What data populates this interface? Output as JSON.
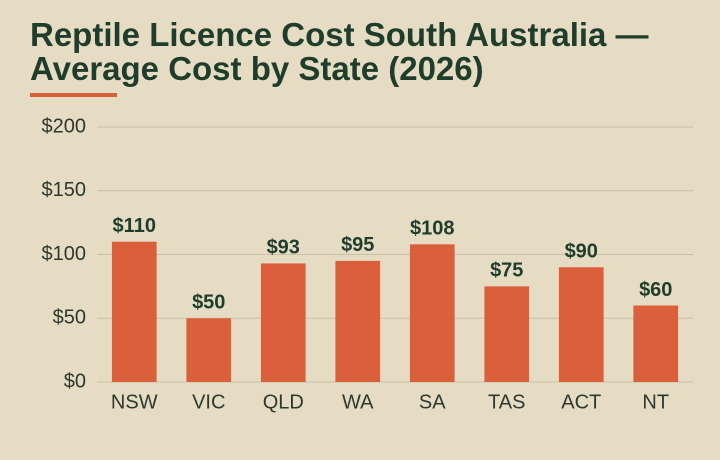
{
  "chart_data": {
    "type": "bar",
    "title": "Reptile Licence Cost South Australia — Average Cost by State (2026)",
    "categories": [
      "NSW",
      "VIC",
      "QLD",
      "WA",
      "SA",
      "TAS",
      "ACT",
      "NT"
    ],
    "values": [
      110,
      50,
      93,
      95,
      108,
      75,
      90,
      60
    ],
    "value_labels": [
      "$110",
      "$50",
      "$93",
      "$95",
      "$108",
      "$75",
      "$90",
      "$60"
    ],
    "color": "#d9603b",
    "ylim": [
      0,
      200
    ],
    "yticks": [
      {
        "value": 0,
        "label": "$0"
      },
      {
        "value": 50,
        "label": "$50"
      },
      {
        "value": 100,
        "label": "$100"
      },
      {
        "value": 150,
        "label": "$150"
      },
      {
        "value": 200,
        "label": "$200"
      }
    ],
    "grid": true
  }
}
